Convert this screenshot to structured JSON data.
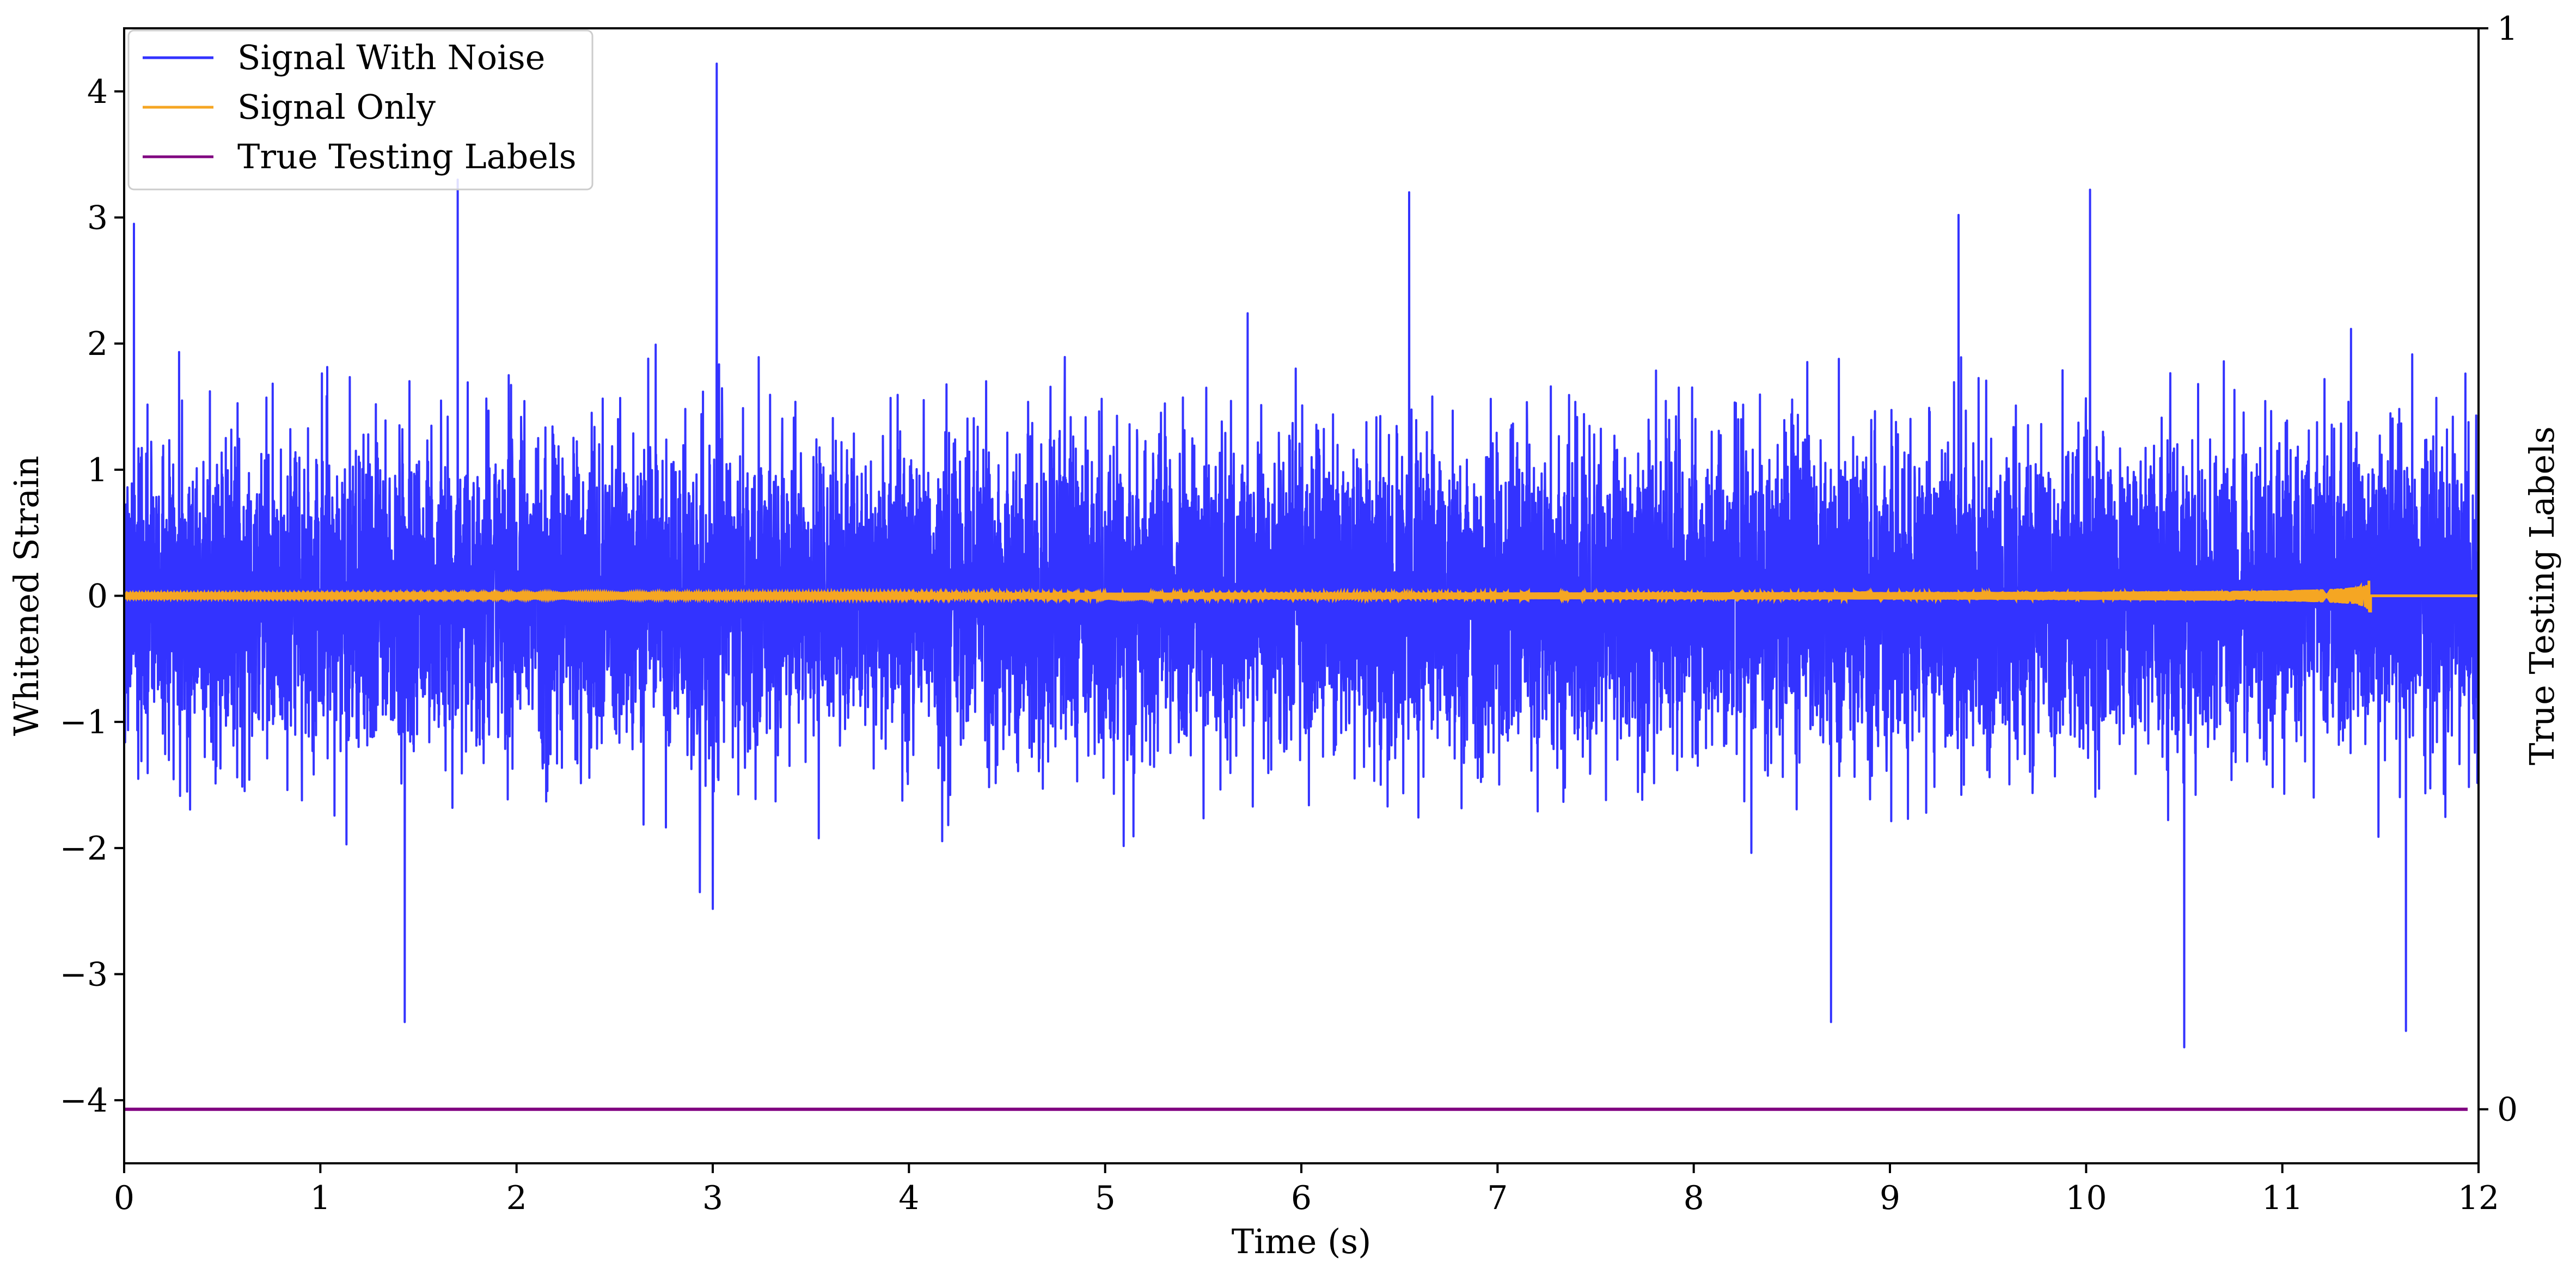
{
  "chart_data": {
    "type": "line",
    "xlabel": "Time (s)",
    "ylabel": "Whitened Strain",
    "y2label": "True Testing Labels",
    "xlim": [
      0,
      12
    ],
    "ylim": [
      -4.5,
      4.5
    ],
    "y2lim": [
      -0.05,
      1.0
    ],
    "xticks": [
      "0",
      "1",
      "2",
      "3",
      "4",
      "5",
      "6",
      "7",
      "8",
      "9",
      "10",
      "11",
      "12"
    ],
    "yticks": [
      "−4",
      "−3",
      "−2",
      "−1",
      "0",
      "1",
      "2",
      "3",
      "4"
    ],
    "y2ticks": [
      "0",
      "1"
    ],
    "grid": false,
    "legend_position": "top-left",
    "series": [
      {
        "name": "Signal With Noise",
        "color": "#3333ff",
        "axis": "left",
        "x_range": [
          0,
          12
        ],
        "noise_std": 0.6,
        "notable_peaks": [
          {
            "x": 0.05,
            "y": 2.95
          },
          {
            "x": 1.7,
            "y": 3.3
          },
          {
            "x": 3.02,
            "y": 4.22
          },
          {
            "x": 6.55,
            "y": 3.2
          },
          {
            "x": 9.35,
            "y": 3.02
          },
          {
            "x": 10.02,
            "y": 3.22
          },
          {
            "x": 1.43,
            "y": -3.38
          },
          {
            "x": 8.7,
            "y": -3.38
          },
          {
            "x": 10.5,
            "y": -3.58
          },
          {
            "x": 11.63,
            "y": -3.45
          }
        ]
      },
      {
        "name": "Signal Only",
        "color": "#f5a623",
        "axis": "left",
        "x_range": [
          0,
          11.45
        ],
        "amplitude_start": 0.02,
        "amplitude_peak": 0.19,
        "merger_time": 11.45
      },
      {
        "name": "True Testing Labels",
        "color": "#800080",
        "axis": "right",
        "x": [
          0,
          12
        ],
        "y": [
          0,
          0
        ]
      }
    ]
  }
}
